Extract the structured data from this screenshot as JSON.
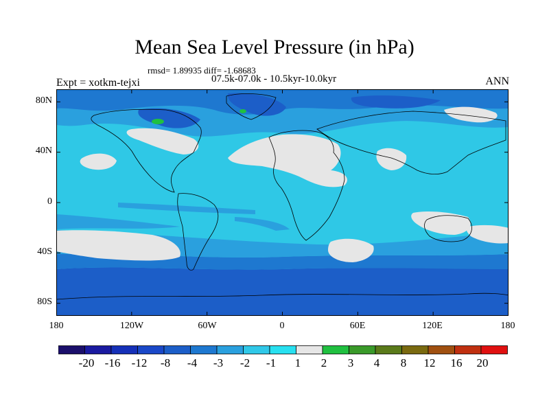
{
  "title": "Mean Sea Level Pressure (in hPa)",
  "stats": "rmsd= 1.89935 diff= -1.68683",
  "period": "07.5k-07.0k - 10.5kyr-10.0kyr",
  "experiment": "Expt = xotkm-tejxi",
  "season": "ANN",
  "y_axis": {
    "labels": [
      "80N",
      "40N",
      "0",
      "40S",
      "80S"
    ],
    "lat_values": [
      80,
      40,
      0,
      -40,
      -80
    ]
  },
  "x_axis": {
    "labels": [
      "180",
      "120W",
      "60W",
      "0",
      "60E",
      "120E",
      "180"
    ],
    "lon_values": [
      -180,
      -120,
      -60,
      0,
      60,
      120,
      180
    ]
  },
  "colorbar": {
    "labels": [
      "-20",
      "-16",
      "-12",
      "-8",
      "-4",
      "-3",
      "-2",
      "-1",
      "1",
      "2",
      "3",
      "4",
      "8",
      "12",
      "16",
      "20"
    ],
    "colors": [
      "#1b0f6b",
      "#1a1aa0",
      "#1530b8",
      "#1a48c8",
      "#1c5ec8",
      "#1e78d0",
      "#2aa0de",
      "#30c8e8",
      "#28e0f0",
      "#e6e6e6",
      "#20c040",
      "#3a9a2a",
      "#5a7a1a",
      "#7a6a10",
      "#a05010",
      "#c03010",
      "#e01010"
    ]
  },
  "map_colors": {
    "ocean_base": "#2fc8e6",
    "deep_blue": "#1c5ec8",
    "mid_blue": "#1e78d0",
    "light_blue": "#2aa0de",
    "neutral": "#e6e6e6",
    "green": "#20c040"
  }
}
